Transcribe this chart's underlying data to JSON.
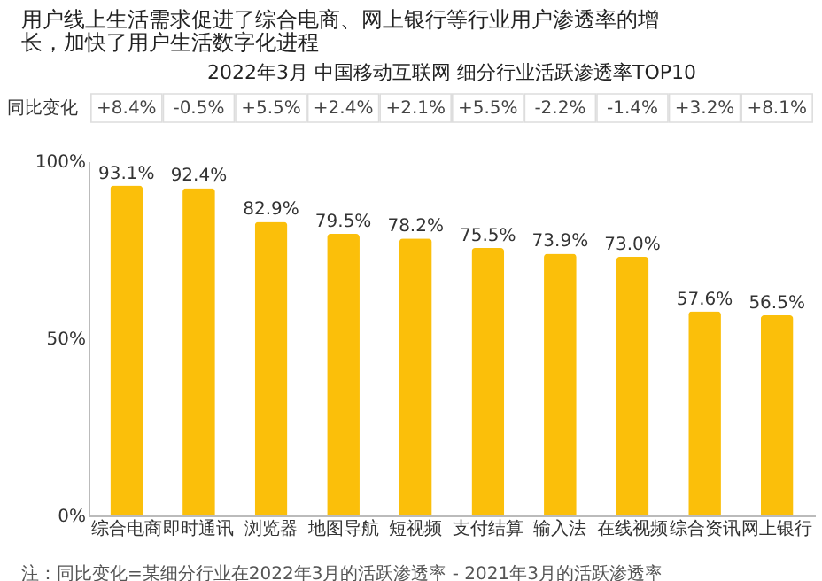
{
  "chart_data": {
    "type": "bar",
    "title": "用户线上生活需求促进了综合电商、网上银行等行业用户渗透率的增长，加快了用户生活数字化进程",
    "subtitle": "2022年3月 中国移动互联网 细分行业活跃渗透率TOP10",
    "categories": [
      "综合电商",
      "即时通讯",
      "浏览器",
      "地图导航",
      "短视频",
      "支付结算",
      "输入法",
      "在线视频",
      "综合资讯",
      "网上银行"
    ],
    "values": [
      93.1,
      92.4,
      82.9,
      79.5,
      78.2,
      75.5,
      73.9,
      73.0,
      57.6,
      56.5
    ],
    "color": "#fbbf0a",
    "value_labels": [
      "93.1%",
      "92.4%",
      "82.9%",
      "79.5%",
      "78.2%",
      "75.5%",
      "73.9%",
      "73.0%",
      "57.6%",
      "56.5%"
    ],
    "ylim": [
      0,
      100
    ],
    "yticks": [
      {
        "value": 0,
        "label": "0%"
      },
      {
        "value": 50,
        "label": "50%"
      },
      {
        "value": 100,
        "label": "100%"
      }
    ],
    "annotations": [
      "同比变化",
      "+8.4%",
      "-0.5%",
      "+5.5%",
      "+2.4%",
      "+2.1%",
      "+5.5%",
      "-2.2%",
      "-1.4%",
      "+3.2%",
      "+8.1%",
      "注：同比变化=某细分行业在2022年3月的活跃渗透率 - 2021年3月的活跃渗透率"
    ]
  }
}
